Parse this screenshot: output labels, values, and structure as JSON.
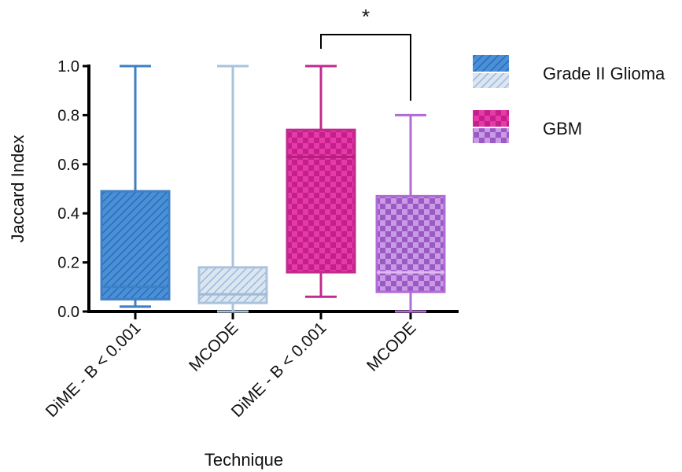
{
  "chart_data": {
    "type": "box",
    "ylabel": "Jaccard Index",
    "xlabel": "Technique",
    "ylim": [
      0,
      1.0
    ],
    "yticks": [
      "0.0",
      "0.2",
      "0.4",
      "0.6",
      "0.8",
      "1.0"
    ],
    "categories": [
      "DiME - B < 0.001",
      "MCODE",
      "DiME - B < 0.001",
      "MCODE"
    ],
    "boxes": [
      {
        "group": "Grade II Glioma",
        "technique": "DiME - B < 0.001",
        "min": 0.02,
        "q1": 0.05,
        "median": 0.1,
        "q3": 0.49,
        "max": 1.0
      },
      {
        "group": "Grade II Glioma",
        "technique": "MCODE",
        "min": 0.0,
        "q1": 0.035,
        "median": 0.07,
        "q3": 0.18,
        "max": 1.0
      },
      {
        "group": "GBM",
        "technique": "DiME - B < 0.001",
        "min": 0.06,
        "q1": 0.16,
        "median": 0.63,
        "q3": 0.74,
        "max": 1.0
      },
      {
        "group": "GBM",
        "technique": "MCODE",
        "min": 0.0,
        "q1": 0.08,
        "median": 0.16,
        "q3": 0.47,
        "max": 0.8
      }
    ],
    "legend": [
      {
        "label": "Grade II Glioma"
      },
      {
        "label": "GBM"
      }
    ],
    "significance": {
      "label": "*",
      "between": [
        2,
        3
      ]
    },
    "legend_position": "right",
    "colors": {
      "glioma_dark": "#4a90d9",
      "glioma_light": "#b8cfe6",
      "gbm_dark": "#e63aa8",
      "gbm_light": "#b77ad9"
    }
  }
}
